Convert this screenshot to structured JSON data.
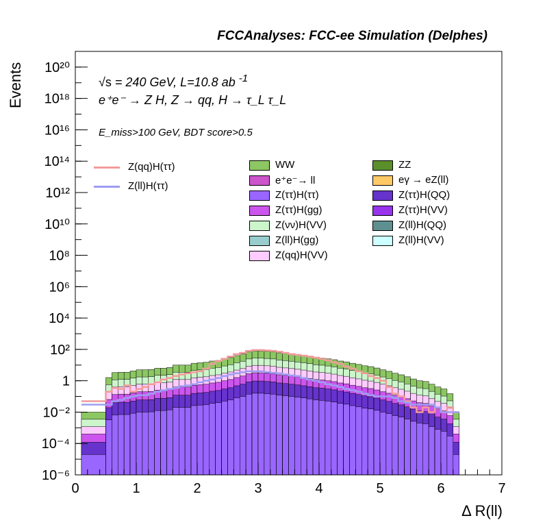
{
  "title": "FCCAnalyses: FCC-ee Simulation (Delphes)",
  "labels": {
    "line1": "= 240 GeV, L=10.8 ab",
    "line1_sqrt": "√s",
    "line1_exp": "-1",
    "line2": "e⁺e⁻ → Z H, Z → qq, H → τ_L τ_L",
    "line3": "E_miss>100 GeV, BDT score>0.5"
  },
  "legend_lines": [
    {
      "label": "Z(qq)H(ττ)",
      "color": "#f29a9a"
    },
    {
      "label": "Z(ll)H(ττ)",
      "color": "#9d9df2"
    }
  ],
  "legend_fills": [
    {
      "label": "WW",
      "color": "#8cc763"
    },
    {
      "label": "ZZ",
      "color": "#5a8f2b"
    },
    {
      "label": "e⁺e⁻→ ll",
      "color": "#cc55cc"
    },
    {
      "label": "eγ → eZ(ll)",
      "color": "#ffc966"
    },
    {
      "label": "Z(ττ)H(ττ)",
      "color": "#9966ff"
    },
    {
      "label": "Z(ττ)H(QQ)",
      "color": "#6633cc"
    },
    {
      "label": "Z(ττ)H(gg)",
      "color": "#cc55ee"
    },
    {
      "label": "Z(ττ)H(VV)",
      "color": "#9933ee"
    },
    {
      "label": "Z(νν)H(VV)",
      "color": "#ccf5cc"
    },
    {
      "label": "Z(ll)H(QQ)",
      "color": "#5f9090"
    },
    {
      "label": "Z(ll)H(gg)",
      "color": "#99cccc"
    },
    {
      "label": "Z(ll)H(VV)",
      "color": "#ccffff"
    },
    {
      "label": "Z(qq)H(VV)",
      "color": "#ffccff"
    }
  ],
  "chart_data": {
    "type": "area",
    "xlabel": "Δ R(ll)",
    "ylabel": "Events",
    "xlim": [
      0,
      7
    ],
    "ylim_log10": [
      -6,
      21
    ],
    "log_y": true,
    "x_ticks": [
      0,
      1,
      2,
      3,
      4,
      5,
      6,
      7
    ],
    "y_tick_labels": [
      "10⁻⁶",
      "10⁻⁴",
      "10⁻²",
      "1",
      "10²",
      "10⁴",
      "10⁶",
      "10⁸",
      "10¹⁰",
      "10¹²",
      "10¹⁴",
      "10¹⁶",
      "10¹⁸",
      "10²⁰"
    ],
    "bin_edges": [
      0.1,
      0.5,
      0.6,
      0.7,
      0.8,
      0.9,
      1.0,
      1.1,
      1.2,
      1.3,
      1.4,
      1.5,
      1.6,
      1.7,
      1.8,
      1.9,
      2.0,
      2.1,
      2.2,
      2.3,
      2.4,
      2.5,
      2.6,
      2.7,
      2.8,
      2.9,
      3.0,
      3.1,
      3.2,
      3.3,
      3.4,
      3.5,
      3.6,
      3.7,
      3.8,
      3.9,
      4.0,
      4.1,
      4.2,
      4.3,
      4.4,
      4.5,
      4.6,
      4.7,
      4.8,
      4.9,
      5.0,
      5.1,
      5.2,
      5.3,
      5.4,
      5.5,
      5.6,
      5.7,
      5.8,
      5.9,
      6.0,
      6.1,
      6.2,
      6.3
    ],
    "stack_total": [
      0.01,
      1.6,
      3.3,
      3.5,
      3.5,
      4.2,
      5.0,
      5.0,
      5.2,
      6.3,
      6.3,
      7.0,
      10,
      10,
      10,
      13,
      14,
      15,
      18,
      20,
      25,
      30,
      40,
      50,
      70,
      80,
      80,
      75,
      70,
      60,
      55,
      50,
      45,
      40,
      35,
      30,
      28,
      25,
      22,
      18,
      16,
      13,
      11,
      9,
      8,
      6.5,
      5.0,
      4.0,
      3.0,
      2.4,
      1.8,
      1.3,
      1.0,
      0.9,
      0.6,
      0.4,
      0.3,
      0.15,
      0.01
    ],
    "series": [
      {
        "name": "Z(qq)H(ττ)",
        "type": "line",
        "values": [
          0.05,
          0.2,
          0.35,
          0.3,
          0.5,
          0.2,
          0.3,
          0.4,
          0.6,
          0.8,
          1.2,
          1.5,
          2,
          2.5,
          3,
          3.5,
          4,
          6,
          12,
          18,
          25,
          35,
          50,
          60,
          80,
          90,
          90,
          85,
          80,
          70,
          60,
          50,
          45,
          40,
          35,
          30,
          25,
          20,
          15,
          12,
          8,
          6,
          4,
          3,
          2,
          1.5,
          1.0,
          0.4,
          0.15,
          0.1,
          0.05,
          0.02,
          0.01,
          0.02,
          0.01,
          0.02,
          0.01,
          0.02,
          0.01
        ]
      },
      {
        "name": "Z(ll)H(ττ)",
        "type": "line",
        "values": [
          0.03,
          0.03,
          0.05,
          0.06,
          0.08,
          0.1,
          0.12,
          0.12,
          0.15,
          0.2,
          0.25,
          0.3,
          0.35,
          0.45,
          0.5,
          0.6,
          0.8,
          1.0,
          1.2,
          1.5,
          2.0,
          2.5,
          3,
          3.5,
          4,
          4,
          4,
          3.5,
          3.2,
          3,
          2.5,
          2.2,
          2,
          1.5,
          1.2,
          1.0,
          0.8,
          0.6,
          0.5,
          0.4,
          0.3,
          0.25,
          0.2,
          0.15,
          0.12,
          0.1,
          0.1,
          0.1,
          0.08,
          0.05,
          0.04,
          0.03,
          0.03,
          0.03,
          0.03,
          0.02,
          0.01,
          0.01,
          0.01
        ]
      }
    ]
  }
}
